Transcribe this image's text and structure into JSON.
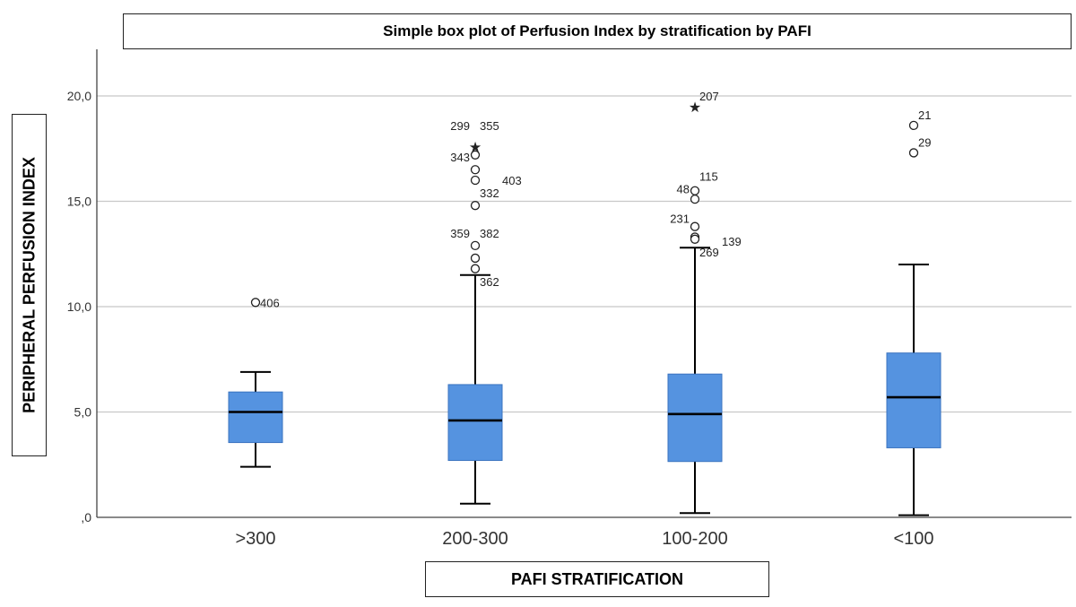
{
  "chart_data": {
    "type": "boxplot",
    "title": "Simple box plot of Perfusion Index by stratification by PAFI",
    "xlabel": "PAFI STRATIFICATION",
    "ylabel": "PERIPHERAL PERFUSION INDEX",
    "ylim": [
      0,
      22
    ],
    "yticks": [
      0,
      5,
      10,
      15,
      20
    ],
    "ytick_labels": [
      ",0",
      "5,0",
      "10,0",
      "15,0",
      "20,0"
    ],
    "grid": true,
    "colors": {
      "box": "#5593e0",
      "box_stroke": "#3a73bf",
      "median": "#000000",
      "grid": "#c8c8c8"
    },
    "categories": [
      ">300",
      "200-300",
      "100-200",
      "<100"
    ],
    "boxes": [
      {
        "category": ">300",
        "whisker_low": 2.4,
        "q1": 3.55,
        "median": 5.0,
        "q3": 5.95,
        "whisker_high": 6.9
      },
      {
        "category": "200-300",
        "whisker_low": 0.65,
        "q1": 2.7,
        "median": 4.6,
        "q3": 6.3,
        "whisker_high": 11.5
      },
      {
        "category": "100-200",
        "whisker_low": 0.2,
        "q1": 2.65,
        "median": 4.9,
        "q3": 6.8,
        "whisker_high": 12.8
      },
      {
        "category": "<100",
        "whisker_low": 0.1,
        "q1": 3.3,
        "median": 5.7,
        "q3": 7.8,
        "whisker_high": 12.0
      }
    ],
    "outliers": [
      {
        "category": ">300",
        "y": 10.2,
        "marker": "circle"
      },
      {
        "category": "200-300",
        "y": 17.6,
        "marker": "star"
      },
      {
        "category": "200-300",
        "y": 17.2,
        "marker": "circle"
      },
      {
        "category": "200-300",
        "y": 16.5,
        "marker": "circle"
      },
      {
        "category": "200-300",
        "y": 16.0,
        "marker": "circle"
      },
      {
        "category": "200-300",
        "y": 14.8,
        "marker": "circle"
      },
      {
        "category": "200-300",
        "y": 12.9,
        "marker": "circle"
      },
      {
        "category": "200-300",
        "y": 12.3,
        "marker": "circle"
      },
      {
        "category": "200-300",
        "y": 11.8,
        "marker": "circle"
      },
      {
        "category": "100-200",
        "y": 19.5,
        "marker": "star"
      },
      {
        "category": "100-200",
        "y": 15.5,
        "marker": "circle"
      },
      {
        "category": "100-200",
        "y": 15.1,
        "marker": "circle"
      },
      {
        "category": "100-200",
        "y": 13.8,
        "marker": "circle"
      },
      {
        "category": "100-200",
        "y": 13.3,
        "marker": "circle"
      },
      {
        "category": "100-200",
        "y": 13.2,
        "marker": "circle"
      },
      {
        "category": "<100",
        "y": 18.6,
        "marker": "circle"
      },
      {
        "category": "<100",
        "y": 17.3,
        "marker": "circle"
      }
    ],
    "outlier_labels": [
      {
        "category": ">300",
        "y": 10.2,
        "side": "right",
        "text": "406"
      },
      {
        "category": "200-300",
        "y": 18.6,
        "side": "left",
        "text": "299"
      },
      {
        "category": "200-300",
        "y": 18.6,
        "side": "right",
        "text": "355"
      },
      {
        "category": "200-300",
        "y": 17.1,
        "side": "left",
        "text": "343"
      },
      {
        "category": "200-300",
        "y": 16.0,
        "side": "right-far",
        "text": "403"
      },
      {
        "category": "200-300",
        "y": 15.4,
        "side": "right",
        "text": "332"
      },
      {
        "category": "200-300",
        "y": 13.5,
        "side": "left",
        "text": "359"
      },
      {
        "category": "200-300",
        "y": 13.5,
        "side": "right",
        "text": "382"
      },
      {
        "category": "200-300",
        "y": 11.2,
        "side": "right",
        "text": "362"
      },
      {
        "category": "100-200",
        "y": 20.0,
        "side": "right",
        "text": "207"
      },
      {
        "category": "100-200",
        "y": 16.2,
        "side": "right",
        "text": "115"
      },
      {
        "category": "100-200",
        "y": 15.6,
        "side": "left",
        "text": "48"
      },
      {
        "category": "100-200",
        "y": 14.2,
        "side": "left",
        "text": "231"
      },
      {
        "category": "100-200",
        "y": 13.1,
        "side": "right-far",
        "text": "139"
      },
      {
        "category": "100-200",
        "y": 12.6,
        "side": "right",
        "text": "269"
      },
      {
        "category": "<100",
        "y": 19.1,
        "side": "right",
        "text": "21"
      },
      {
        "category": "<100",
        "y": 17.8,
        "side": "right",
        "text": "29"
      }
    ]
  }
}
